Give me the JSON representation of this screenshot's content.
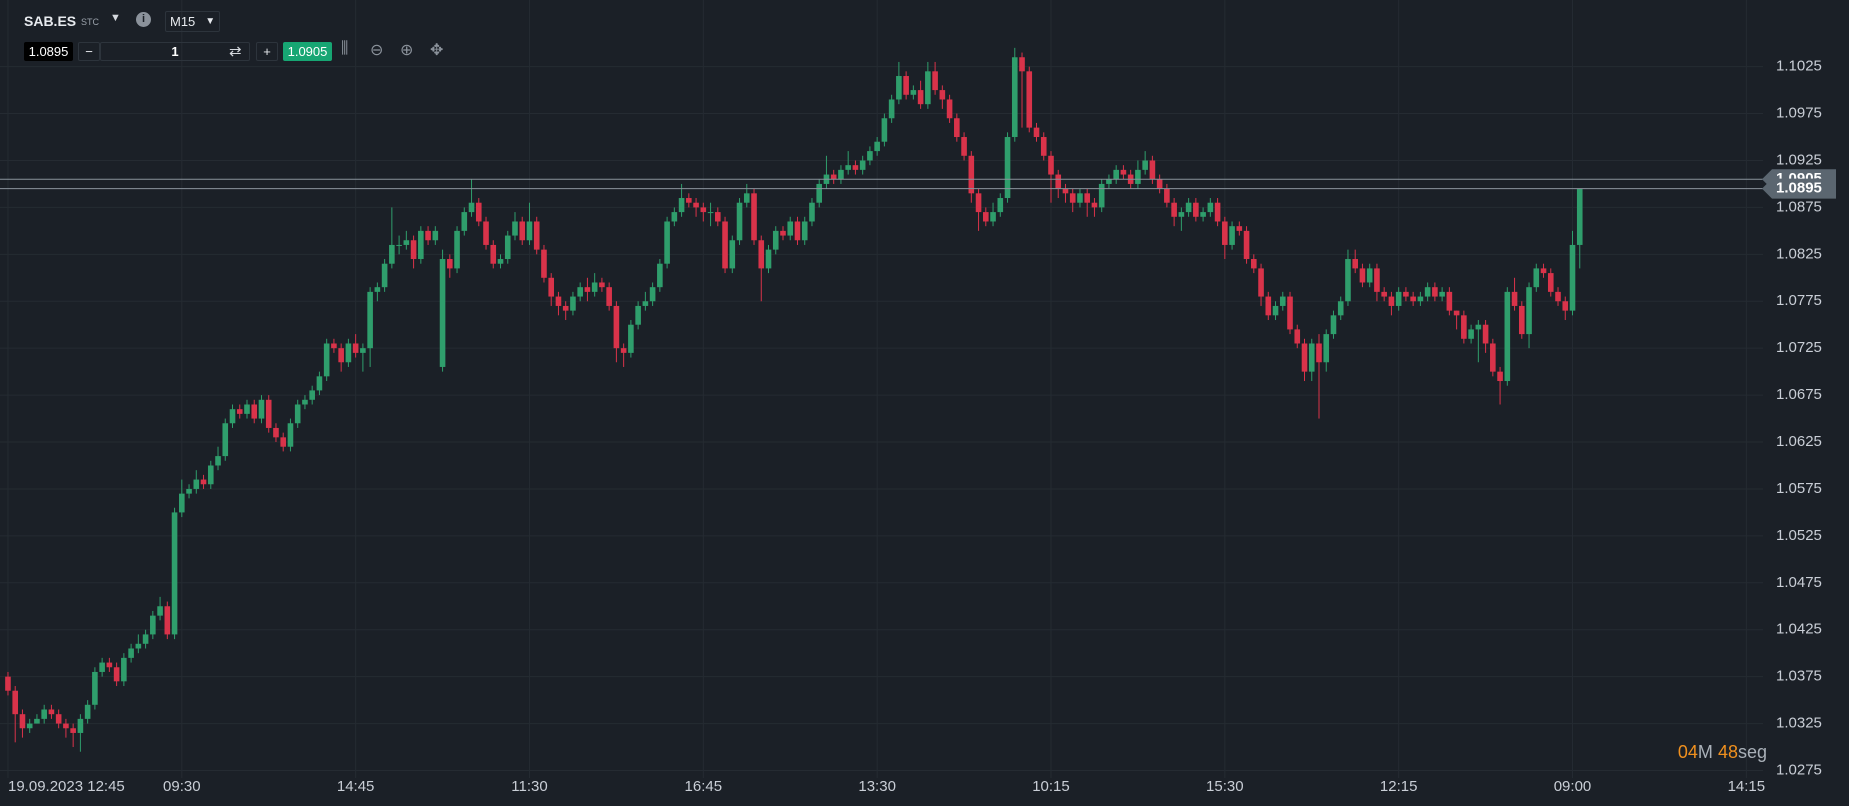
{
  "toolbar": {
    "symbol": "SAB.ES",
    "exchange": "STC",
    "timeframe": "M15",
    "quantity": 1
  },
  "countdown": {
    "minutes": "04",
    "minutes_unit": "M",
    "seconds": "48",
    "seconds_unit": "seg"
  },
  "chart_data": {
    "type": "candlestick",
    "bid": 1.0895,
    "ask": 1.0905,
    "up_color": "#2f9e6c",
    "down_color": "#d9334a",
    "grid": true,
    "xlim": [
      -1.1,
      242.3
    ],
    "ylim": [
      1.0267,
      1.1096
    ],
    "xticks": [
      {
        "value": 0,
        "label": "19.09.2023 12:45"
      },
      {
        "value": 24,
        "label": "09:30"
      },
      {
        "value": 48,
        "label": "14:45"
      },
      {
        "value": 72,
        "label": "11:30"
      },
      {
        "value": 96,
        "label": "16:45"
      },
      {
        "value": 120,
        "label": "13:30"
      },
      {
        "value": 144,
        "label": "10:15"
      },
      {
        "value": 168,
        "label": "15:30"
      },
      {
        "value": 192,
        "label": "12:15"
      },
      {
        "value": 216,
        "label": "09:00"
      },
      {
        "value": 240,
        "label": "14:15"
      }
    ],
    "yticks": [
      1.0275,
      1.0325,
      1.0375,
      1.0425,
      1.0475,
      1.0525,
      1.0575,
      1.0625,
      1.0675,
      1.0725,
      1.0775,
      1.0825,
      1.0875,
      1.0925,
      1.0975,
      1.1025
    ],
    "open": [
      1.0375,
      1.036,
      1.0335,
      1.032,
      1.0325,
      1.033,
      1.034,
      1.0335,
      1.0325,
      1.032,
      1.0315,
      1.033,
      1.0345,
      1.038,
      1.039,
      1.0385,
      1.037,
      1.0395,
      1.0405,
      1.041,
      1.042,
      1.044,
      1.045,
      1.042,
      1.055,
      1.057,
      1.0575,
      1.0585,
      1.058,
      1.06,
      1.061,
      1.0645,
      1.066,
      1.0655,
      1.0665,
      1.065,
      1.067,
      1.064,
      1.063,
      1.062,
      1.0645,
      1.0665,
      1.067,
      1.068,
      1.0695,
      1.073,
      1.0725,
      1.071,
      1.073,
      1.072,
      1.0725,
      1.0785,
      1.079,
      1.0815,
      1.0835,
      1.0835,
      1.084,
      1.082,
      1.085,
      1.084,
      1.0705,
      1.082,
      1.081,
      1.085,
      1.087,
      1.088,
      1.086,
      1.0835,
      1.0815,
      1.082,
      1.0845,
      1.086,
      1.084,
      1.086,
      1.083,
      1.08,
      1.078,
      1.077,
      1.0765,
      1.078,
      1.079,
      1.0785,
      1.0795,
      1.079,
      1.077,
      1.0725,
      1.072,
      1.075,
      1.077,
      1.0775,
      1.079,
      1.0815,
      1.086,
      1.087,
      1.0885,
      1.088,
      1.0875,
      1.087,
      1.087,
      1.086,
      1.081,
      1.084,
      1.088,
      1.089,
      1.084,
      1.081,
      1.083,
      1.085,
      1.0845,
      1.086,
      1.084,
      1.086,
      1.088,
      1.09,
      1.091,
      1.0905,
      1.0915,
      1.092,
      1.0915,
      1.0925,
      1.0935,
      1.0945,
      1.097,
      1.099,
      1.1015,
      1.0995,
      1.1,
      1.0985,
      1.102,
      1.1,
      1.099,
      1.097,
      1.095,
      1.093,
      1.089,
      1.087,
      1.086,
      1.087,
      1.0885,
      1.095,
      1.1035,
      1.102,
      1.096,
      1.095,
      1.093,
      1.091,
      1.0895,
      1.089,
      1.088,
      1.089,
      1.088,
      1.0875,
      1.09,
      1.0905,
      1.0915,
      1.091,
      1.09,
      1.0915,
      1.0925,
      1.0905,
      1.0895,
      1.088,
      1.0865,
      1.087,
      1.088,
      1.0865,
      1.087,
      1.088,
      1.086,
      1.0835,
      1.0855,
      1.085,
      1.082,
      1.081,
      1.078,
      1.076,
      1.077,
      1.078,
      1.0745,
      1.073,
      1.07,
      1.073,
      1.071,
      1.074,
      1.076,
      1.0775,
      1.082,
      1.081,
      1.0795,
      1.081,
      1.0785,
      1.078,
      1.077,
      1.0785,
      1.078,
      1.0775,
      1.078,
      1.079,
      1.078,
      1.0785,
      1.0765,
      1.076,
      1.0735,
      1.0745,
      1.075,
      1.073,
      1.07,
      1.069,
      1.0785,
      1.077,
      1.074,
      1.079,
      1.081,
      1.0805,
      1.0785,
      1.0775,
      1.0765,
      1.0835
    ],
    "high": [
      1.038,
      1.0365,
      1.034,
      1.033,
      1.0335,
      1.0345,
      1.0345,
      1.034,
      1.033,
      1.0325,
      1.0335,
      1.035,
      1.0385,
      1.0395,
      1.0395,
      1.039,
      1.04,
      1.041,
      1.042,
      1.0425,
      1.0445,
      1.046,
      1.0455,
      1.0555,
      1.0585,
      1.058,
      1.0595,
      1.059,
      1.0605,
      1.062,
      1.065,
      1.0665,
      1.0665,
      1.067,
      1.067,
      1.0675,
      1.0675,
      1.0645,
      1.0635,
      1.065,
      1.067,
      1.0675,
      1.0685,
      1.07,
      1.0735,
      1.0735,
      1.073,
      1.0735,
      1.074,
      1.073,
      1.079,
      1.0795,
      1.082,
      1.0875,
      1.0845,
      1.085,
      1.0845,
      1.0855,
      1.0855,
      1.0855,
      1.083,
      1.0825,
      1.0855,
      1.0875,
      1.0905,
      1.0885,
      1.0865,
      1.084,
      1.0825,
      1.085,
      1.087,
      1.0865,
      1.088,
      1.0865,
      1.0835,
      1.0805,
      1.0785,
      1.0775,
      1.0785,
      1.0795,
      1.08,
      1.0805,
      1.08,
      1.0795,
      1.0775,
      1.073,
      1.0755,
      1.0775,
      1.0785,
      1.0795,
      1.082,
      1.0865,
      1.0875,
      1.09,
      1.089,
      1.0885,
      1.088,
      1.088,
      1.0875,
      1.0865,
      1.0845,
      1.0885,
      1.09,
      1.0895,
      1.0845,
      1.0835,
      1.0855,
      1.0855,
      1.0865,
      1.0865,
      1.0865,
      1.0885,
      1.0905,
      1.093,
      1.0915,
      1.092,
      1.0935,
      1.0925,
      1.093,
      1.094,
      1.095,
      1.0975,
      1.0995,
      1.103,
      1.102,
      1.1005,
      1.101,
      1.103,
      1.103,
      1.1005,
      1.0995,
      1.0975,
      1.0955,
      1.0935,
      1.0895,
      1.0875,
      1.088,
      1.089,
      1.0955,
      1.1045,
      1.104,
      1.1025,
      1.0965,
      1.0955,
      1.0935,
      1.0915,
      1.09,
      1.0895,
      1.0895,
      1.0895,
      1.0885,
      1.0905,
      1.091,
      1.092,
      1.092,
      1.0915,
      1.0925,
      1.0935,
      1.093,
      1.091,
      1.09,
      1.0885,
      1.0875,
      1.0885,
      1.0885,
      1.0875,
      1.0885,
      1.0885,
      1.0865,
      1.086,
      1.086,
      1.0855,
      1.0825,
      1.0815,
      1.0785,
      1.0775,
      1.0785,
      1.0785,
      1.075,
      1.0735,
      1.0735,
      1.074,
      1.0745,
      1.0765,
      1.078,
      1.083,
      1.083,
      1.0815,
      1.0815,
      1.0815,
      1.079,
      1.0785,
      1.079,
      1.079,
      1.0785,
      1.0785,
      1.0795,
      1.0795,
      1.079,
      1.079,
      1.0765,
      1.0765,
      1.075,
      1.0755,
      1.0755,
      1.0735,
      1.0705,
      1.079,
      1.08,
      1.0775,
      1.0795,
      1.0815,
      1.0815,
      1.081,
      1.079,
      1.078,
      1.085,
      1.0895
    ],
    "low": [
      1.0355,
      1.0305,
      1.031,
      1.0315,
      1.0325,
      1.0325,
      1.033,
      1.032,
      1.031,
      1.03,
      1.0295,
      1.0325,
      1.034,
      1.0375,
      1.038,
      1.0365,
      1.0365,
      1.039,
      1.04,
      1.0405,
      1.0415,
      1.0435,
      1.0415,
      1.0415,
      1.0545,
      1.0565,
      1.057,
      1.0575,
      1.0575,
      1.0595,
      1.0605,
      1.064,
      1.065,
      1.065,
      1.0645,
      1.0645,
      1.0635,
      1.0625,
      1.0615,
      1.0615,
      1.064,
      1.066,
      1.0665,
      1.0675,
      1.069,
      1.072,
      1.07,
      1.0705,
      1.0715,
      1.07,
      1.0705,
      1.0775,
      1.0785,
      1.081,
      1.0825,
      1.083,
      1.081,
      1.0815,
      1.0835,
      1.0835,
      1.07,
      1.08,
      1.0805,
      1.0845,
      1.0865,
      1.0855,
      1.083,
      1.081,
      1.081,
      1.0815,
      1.084,
      1.0835,
      1.0835,
      1.0825,
      1.0795,
      1.077,
      1.076,
      1.0755,
      1.076,
      1.0775,
      1.0775,
      1.078,
      1.0785,
      1.0765,
      1.071,
      1.0705,
      1.0715,
      1.0745,
      1.0765,
      1.077,
      1.0785,
      1.081,
      1.0855,
      1.0865,
      1.0875,
      1.0865,
      1.086,
      1.0855,
      1.0855,
      1.0805,
      1.0805,
      1.0835,
      1.0875,
      1.0835,
      1.0775,
      1.0805,
      1.0825,
      1.084,
      1.084,
      1.0835,
      1.0835,
      1.0855,
      1.0875,
      1.0895,
      1.09,
      1.09,
      1.091,
      1.091,
      1.091,
      1.092,
      1.093,
      1.094,
      1.0965,
      1.0985,
      1.099,
      1.099,
      1.098,
      1.098,
      1.0995,
      1.098,
      1.0965,
      1.0945,
      1.0925,
      1.088,
      1.085,
      1.0855,
      1.0855,
      1.0865,
      1.088,
      1.0945,
      1.096,
      1.0955,
      1.0945,
      1.0925,
      1.088,
      1.0885,
      1.088,
      1.087,
      1.0875,
      1.0865,
      1.0865,
      1.087,
      1.0895,
      1.09,
      1.0905,
      1.0895,
      1.0895,
      1.091,
      1.09,
      1.089,
      1.0875,
      1.0855,
      1.085,
      1.0865,
      1.086,
      1.086,
      1.0865,
      1.0855,
      1.082,
      1.083,
      1.0845,
      1.0815,
      1.0805,
      1.077,
      1.0755,
      1.0755,
      1.0765,
      1.074,
      1.0725,
      1.069,
      1.069,
      1.065,
      1.07,
      1.0735,
      1.0755,
      1.077,
      1.0805,
      1.079,
      1.079,
      1.0775,
      1.0775,
      1.076,
      1.0765,
      1.0775,
      1.077,
      1.077,
      1.0775,
      1.0775,
      1.0775,
      1.076,
      1.0745,
      1.073,
      1.073,
      1.071,
      1.072,
      1.0695,
      1.0665,
      1.0685,
      1.0765,
      1.0735,
      1.0725,
      1.0785,
      1.08,
      1.078,
      1.077,
      1.0755,
      1.076,
      1.081
    ],
    "close": [
      1.036,
      1.0335,
      1.032,
      1.0325,
      1.033,
      1.034,
      1.0335,
      1.0325,
      1.032,
      1.0315,
      1.033,
      1.0345,
      1.038,
      1.039,
      1.0385,
      1.037,
      1.0395,
      1.0405,
      1.041,
      1.042,
      1.044,
      1.045,
      1.042,
      1.055,
      1.057,
      1.0575,
      1.0585,
      1.058,
      1.06,
      1.061,
      1.0645,
      1.066,
      1.0655,
      1.0665,
      1.065,
      1.067,
      1.064,
      1.063,
      1.062,
      1.0645,
      1.0665,
      1.067,
      1.068,
      1.0695,
      1.073,
      1.0725,
      1.071,
      1.073,
      1.072,
      1.0725,
      1.0785,
      1.079,
      1.0815,
      1.0835,
      1.0835,
      1.084,
      1.082,
      1.085,
      1.084,
      1.085,
      1.082,
      1.081,
      1.085,
      1.087,
      1.088,
      1.086,
      1.0835,
      1.0815,
      1.082,
      1.0845,
      1.086,
      1.084,
      1.086,
      1.083,
      1.08,
      1.078,
      1.077,
      1.0765,
      1.078,
      1.079,
      1.0785,
      1.0795,
      1.079,
      1.077,
      1.0725,
      1.072,
      1.075,
      1.077,
      1.0775,
      1.079,
      1.0815,
      1.086,
      1.087,
      1.0885,
      1.088,
      1.0875,
      1.087,
      1.087,
      1.086,
      1.081,
      1.084,
      1.088,
      1.089,
      1.084,
      1.081,
      1.083,
      1.085,
      1.0845,
      1.086,
      1.084,
      1.086,
      1.088,
      1.09,
      1.091,
      1.0905,
      1.0915,
      1.092,
      1.0915,
      1.0925,
      1.0935,
      1.0945,
      1.097,
      1.099,
      1.1015,
      1.0995,
      1.1,
      1.0985,
      1.102,
      1.1,
      1.099,
      1.097,
      1.095,
      1.093,
      1.089,
      1.087,
      1.086,
      1.087,
      1.0885,
      1.095,
      1.1035,
      1.102,
      1.096,
      1.095,
      1.093,
      1.091,
      1.0895,
      1.089,
      1.088,
      1.089,
      1.088,
      1.0875,
      1.09,
      1.0905,
      1.0915,
      1.091,
      1.09,
      1.0915,
      1.0925,
      1.0905,
      1.0895,
      1.088,
      1.0865,
      1.087,
      1.088,
      1.0865,
      1.087,
      1.088,
      1.086,
      1.0835,
      1.0855,
      1.085,
      1.082,
      1.081,
      1.078,
      1.076,
      1.077,
      1.078,
      1.0745,
      1.073,
      1.07,
      1.073,
      1.071,
      1.074,
      1.076,
      1.0775,
      1.082,
      1.081,
      1.0795,
      1.081,
      1.0785,
      1.078,
      1.077,
      1.0785,
      1.078,
      1.0775,
      1.078,
      1.079,
      1.078,
      1.0785,
      1.0765,
      1.076,
      1.0735,
      1.0745,
      1.075,
      1.073,
      1.07,
      1.069,
      1.0785,
      1.077,
      1.074,
      1.079,
      1.081,
      1.0805,
      1.0785,
      1.0775,
      1.0765,
      1.0835,
      1.0895
    ]
  }
}
